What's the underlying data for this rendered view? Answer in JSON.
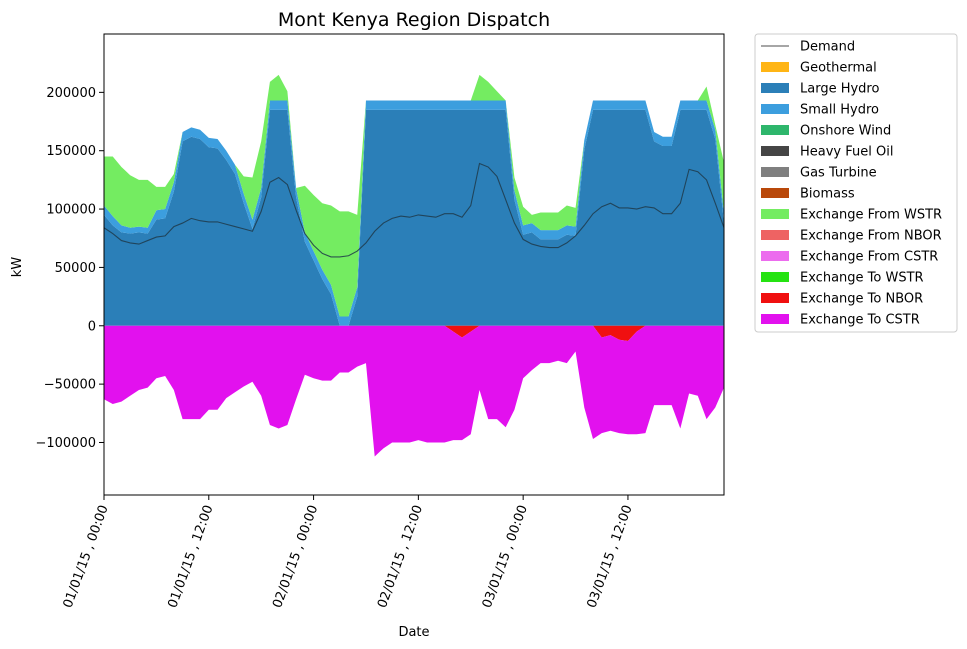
{
  "chart_data": {
    "type": "area",
    "title": "Mont Kenya Region Dispatch",
    "xlabel": "Date",
    "ylabel": "kW",
    "ylim": [
      -145000,
      250000
    ],
    "xlim": [
      "01/01/15 , 00:00",
      "03/01/15 , 23:00"
    ],
    "time_step_hours": 1,
    "grid": false,
    "legend_position": "outside-right",
    "x_ticks": [
      {
        "hour": 0,
        "label": "01/01/15 , 00:00"
      },
      {
        "hour": 12,
        "label": "01/01/15 , 12:00"
      },
      {
        "hour": 24,
        "label": "02/01/15 , 00:00"
      },
      {
        "hour": 36,
        "label": "02/01/15 , 12:00"
      },
      {
        "hour": 48,
        "label": "03/01/15 , 00:00"
      },
      {
        "hour": 60,
        "label": "03/01/15 , 12:00"
      }
    ],
    "y_ticks": [
      {
        "value": -100000,
        "label": "−100000"
      },
      {
        "value": -50000,
        "label": "−50000"
      },
      {
        "value": 0,
        "label": "0"
      },
      {
        "value": 50000,
        "label": "50000"
      },
      {
        "value": 100000,
        "label": "100000"
      },
      {
        "value": 150000,
        "label": "150000"
      },
      {
        "value": 200000,
        "label": "200000"
      }
    ],
    "series": [
      {
        "name": "Demand",
        "kind": "line",
        "color": "#707070",
        "values": [
          84000,
          79000,
          73000,
          71000,
          70000,
          73000,
          76000,
          77000,
          85000,
          88000,
          92000,
          90000,
          89000,
          89000,
          87000,
          85000,
          83000,
          81000,
          98000,
          123000,
          127000,
          121000,
          99000,
          79000,
          69000,
          62000,
          59000,
          59000,
          60000,
          64000,
          71000,
          81000,
          88000,
          92000,
          94000,
          93000,
          95000,
          94000,
          93000,
          96000,
          96000,
          93000,
          103000,
          139000,
          136000,
          128000,
          108000,
          88000,
          74000,
          70000,
          68000,
          67000,
          67000,
          71000,
          77000,
          86000,
          96000,
          102000,
          105000,
          101000,
          101000,
          100000,
          102000,
          101000,
          96000,
          96000,
          105000,
          134000,
          132000,
          125000,
          105000,
          84000
        ]
      },
      {
        "name": "Geothermal",
        "kind": "area",
        "color": "#ffb515",
        "values": [
          0,
          0,
          0,
          0,
          0,
          0,
          0,
          0,
          0,
          0,
          0,
          0,
          0,
          0,
          0,
          0,
          0,
          0,
          0,
          0,
          0,
          0,
          0,
          0,
          0,
          0,
          0,
          0,
          0,
          0,
          0,
          0,
          0,
          0,
          0,
          0,
          0,
          0,
          0,
          0,
          0,
          0,
          0,
          0,
          0,
          0,
          0,
          0,
          0,
          0,
          0,
          0,
          0,
          0,
          0,
          0,
          0,
          0,
          0,
          0,
          0,
          0,
          0,
          0,
          0,
          0,
          0,
          0,
          0,
          0,
          0,
          0
        ]
      },
      {
        "name": "Large Hydro",
        "kind": "area",
        "color": "#2b7fb8",
        "values": [
          95000,
          86000,
          80000,
          79000,
          80000,
          79000,
          91000,
          92000,
          115000,
          158000,
          162000,
          160000,
          153000,
          152000,
          142000,
          130000,
          105000,
          83000,
          110000,
          185000,
          185000,
          185000,
          110000,
          72000,
          56000,
          40000,
          27000,
          0,
          0,
          25000,
          185000,
          185000,
          185000,
          185000,
          185000,
          185000,
          185000,
          185000,
          185000,
          185000,
          185000,
          185000,
          185000,
          185000,
          185000,
          185000,
          185000,
          108000,
          78000,
          80000,
          74000,
          74000,
          74000,
          78000,
          77000,
          151000,
          185000,
          185000,
          185000,
          185000,
          185000,
          185000,
          185000,
          158000,
          154000,
          154000,
          185000,
          185000,
          185000,
          185000,
          160000,
          88000
        ]
      },
      {
        "name": "Small Hydro",
        "kind": "area",
        "color": "#3c9ede",
        "values": [
          8000,
          8000,
          6000,
          5000,
          5000,
          5000,
          8000,
          8000,
          8000,
          8000,
          8000,
          8000,
          8000,
          8000,
          8000,
          8000,
          8000,
          8000,
          8000,
          8000,
          8000,
          8000,
          8000,
          8000,
          8000,
          8000,
          8000,
          8000,
          8000,
          8000,
          8000,
          8000,
          8000,
          8000,
          8000,
          8000,
          8000,
          8000,
          8000,
          8000,
          8000,
          8000,
          8000,
          8000,
          8000,
          8000,
          8000,
          8000,
          8000,
          8000,
          8000,
          8000,
          8000,
          8000,
          8000,
          8000,
          8000,
          8000,
          8000,
          8000,
          8000,
          8000,
          8000,
          8000,
          8000,
          8000,
          8000,
          8000,
          8000,
          8000,
          8000,
          8000
        ]
      },
      {
        "name": "Onshore Wind",
        "kind": "area",
        "color": "#2eb66c",
        "values": [
          0
        ]
      },
      {
        "name": "Heavy Fuel Oil",
        "kind": "area",
        "color": "#454545",
        "values": [
          0
        ]
      },
      {
        "name": "Gas Turbine",
        "kind": "area",
        "color": "#7f7f7f",
        "values": [
          0
        ]
      },
      {
        "name": "Biomass",
        "kind": "area",
        "color": "#b9480a",
        "values": [
          0
        ]
      },
      {
        "name": "Exchange From WSTR",
        "kind": "area",
        "color": "#74ec61",
        "values": [
          42000,
          51000,
          50000,
          45000,
          40000,
          41000,
          20000,
          19000,
          7000,
          0,
          0,
          0,
          0,
          0,
          0,
          0,
          15000,
          36000,
          40000,
          16000,
          22000,
          8000,
          0,
          40000,
          48000,
          57000,
          68000,
          90000,
          90000,
          62000,
          0,
          0,
          0,
          0,
          0,
          0,
          0,
          0,
          0,
          0,
          0,
          0,
          0,
          22000,
          16000,
          8000,
          0,
          11000,
          16000,
          7000,
          15000,
          15000,
          15000,
          17000,
          16000,
          0,
          0,
          0,
          0,
          0,
          0,
          0,
          0,
          0,
          0,
          0,
          0,
          0,
          0,
          12000,
          4000,
          44000
        ]
      },
      {
        "name": "Exchange From NBOR",
        "kind": "area",
        "color": "#ee6363",
        "values": [
          0
        ]
      },
      {
        "name": "Exchange From CSTR",
        "kind": "area",
        "color": "#ec6cee",
        "values": [
          0
        ]
      },
      {
        "name": "Exchange To WSTR",
        "kind": "area",
        "color": "#25e311",
        "values": [
          0
        ]
      },
      {
        "name": "Exchange To NBOR",
        "kind": "area",
        "color": "#f01010",
        "values": [
          0,
          0,
          0,
          0,
          0,
          0,
          0,
          0,
          0,
          0,
          0,
          0,
          0,
          0,
          0,
          0,
          0,
          0,
          0,
          0,
          0,
          0,
          0,
          0,
          0,
          0,
          0,
          0,
          0,
          0,
          0,
          0,
          0,
          0,
          0,
          0,
          0,
          0,
          0,
          0,
          -5000,
          -10000,
          -5000,
          0,
          0,
          0,
          0,
          0,
          0,
          0,
          0,
          0,
          0,
          0,
          0,
          0,
          0,
          -10000,
          -8000,
          -12000,
          -13000,
          -5000,
          0,
          0,
          0,
          0,
          0,
          0,
          0,
          0,
          0,
          0
        ]
      },
      {
        "name": "Exchange To CSTR",
        "kind": "area",
        "color": "#e211ee",
        "values": [
          -63000,
          -67000,
          -65000,
          -60000,
          -55000,
          -53000,
          -45000,
          -43000,
          -55000,
          -80000,
          -80000,
          -80000,
          -72000,
          -72000,
          -62000,
          -57000,
          -52000,
          -48000,
          -60000,
          -85000,
          -88000,
          -85000,
          -63000,
          -42000,
          -45000,
          -47000,
          -47000,
          -40000,
          -40000,
          -35000,
          -32000,
          -112000,
          -105000,
          -100000,
          -100000,
          -100000,
          -98000,
          -100000,
          -100000,
          -100000,
          -93000,
          -88000,
          -88000,
          -55000,
          -80000,
          -80000,
          -87000,
          -72000,
          -45000,
          -38000,
          -32000,
          -32000,
          -30000,
          -32000,
          -22000,
          -70000,
          -97000,
          -82000,
          -82000,
          -80000,
          -80000,
          -88000,
          -92000,
          -68000,
          -68000,
          -68000,
          -88000,
          -58000,
          -60000,
          -80000,
          -70000,
          -53000
        ]
      }
    ]
  }
}
